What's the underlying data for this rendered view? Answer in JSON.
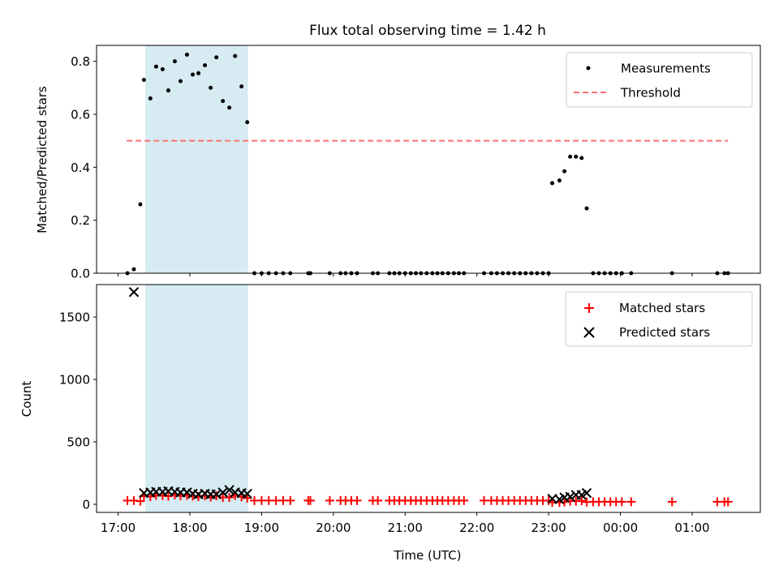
{
  "chart_data": [
    {
      "type": "scatter",
      "title": "Flux total observing time = 1.42 h",
      "ylabel": "Matched/Predicted stars",
      "xlim": [
        16.7,
        25.95
      ],
      "ylim": [
        0,
        0.86
      ],
      "yticks": [
        {
          "v": 0.0,
          "label": "0.0"
        },
        {
          "v": 0.2,
          "label": "0.2"
        },
        {
          "v": 0.4,
          "label": "0.4"
        },
        {
          "v": 0.6,
          "label": "0.6"
        },
        {
          "v": 0.8,
          "label": "0.8"
        }
      ],
      "shaded_span": {
        "x0": 17.38,
        "x1": 18.81,
        "color": "#add8e6"
      },
      "threshold": {
        "name": "Threshold",
        "y": 0.5,
        "x0": 17.12,
        "x1": 25.5,
        "color": "#ff7070"
      },
      "legend": {
        "position": "upper right"
      },
      "series": [
        {
          "name": "Measurements",
          "color": "#000000",
          "x": [
            17.13,
            17.22,
            17.31,
            17.36,
            17.45,
            17.53,
            17.62,
            17.7,
            17.79,
            17.87,
            17.96,
            18.04,
            18.12,
            18.21,
            18.29,
            18.37,
            18.46,
            18.55,
            18.63,
            18.72,
            18.8,
            18.9,
            19.0,
            19.1,
            19.2,
            19.3,
            19.4,
            19.65,
            19.68,
            19.95,
            20.1,
            20.17,
            20.25,
            20.33,
            20.55,
            20.62,
            20.78,
            20.85,
            20.92,
            21.0,
            21.08,
            21.15,
            21.22,
            21.3,
            21.38,
            21.45,
            21.52,
            21.6,
            21.68,
            21.75,
            21.82,
            22.1,
            22.2,
            22.28,
            22.36,
            22.44,
            22.52,
            22.6,
            22.68,
            22.76,
            22.84,
            22.92,
            23.0,
            23.05,
            23.15,
            23.22,
            23.3,
            23.38,
            23.46,
            23.53,
            23.62,
            23.7,
            23.78,
            23.86,
            23.94,
            24.02,
            24.15,
            24.72,
            25.35,
            25.45,
            25.5
          ],
          "y": [
            0.0,
            0.015,
            0.26,
            0.73,
            0.66,
            0.78,
            0.77,
            0.69,
            0.8,
            0.725,
            0.825,
            0.75,
            0.755,
            0.785,
            0.7,
            0.815,
            0.65,
            0.625,
            0.82,
            0.705,
            0.57,
            0,
            0,
            0,
            0,
            0,
            0,
            0,
            0,
            0,
            0,
            0,
            0,
            0,
            0,
            0,
            0,
            0,
            0,
            0,
            0,
            0,
            0,
            0,
            0,
            0,
            0,
            0,
            0,
            0,
            0,
            0,
            0,
            0,
            0,
            0,
            0,
            0,
            0,
            0,
            0,
            0,
            0,
            0.34,
            0.35,
            0.385,
            0.44,
            0.44,
            0.435,
            0.245,
            0,
            0,
            0,
            0,
            0,
            0,
            0,
            0,
            0,
            0,
            0
          ]
        }
      ]
    },
    {
      "type": "scatter",
      "ylabel": "Count",
      "xlabel": "Time (UTC)",
      "xlim": [
        16.7,
        25.95
      ],
      "ylim": [
        -65,
        1760
      ],
      "yticks": [
        {
          "v": 0,
          "label": "0"
        },
        {
          "v": 500,
          "label": "500"
        },
        {
          "v": 1000,
          "label": "1000"
        },
        {
          "v": 1500,
          "label": "1500"
        }
      ],
      "xticks": [
        {
          "v": 17,
          "label": "17:00"
        },
        {
          "v": 18,
          "label": "18:00"
        },
        {
          "v": 19,
          "label": "19:00"
        },
        {
          "v": 20,
          "label": "20:00"
        },
        {
          "v": 21,
          "label": "21:00"
        },
        {
          "v": 22,
          "label": "22:00"
        },
        {
          "v": 23,
          "label": "23:00"
        },
        {
          "v": 24,
          "label": "00:00"
        },
        {
          "v": 25,
          "label": "01:00"
        }
      ],
      "shaded_span": {
        "x0": 17.38,
        "x1": 18.81,
        "color": "#add8e6"
      },
      "legend": {
        "position": "upper right"
      },
      "series": [
        {
          "name": "Matched stars",
          "marker": "plus",
          "color": "#ff0000",
          "x": [
            17.13,
            17.22,
            17.31,
            17.36,
            17.45,
            17.53,
            17.62,
            17.7,
            17.79,
            17.87,
            17.96,
            18.04,
            18.12,
            18.21,
            18.29,
            18.37,
            18.46,
            18.55,
            18.63,
            18.72,
            18.8,
            18.9,
            19.0,
            19.1,
            19.2,
            19.3,
            19.4,
            19.65,
            19.68,
            19.95,
            20.1,
            20.17,
            20.25,
            20.33,
            20.55,
            20.62,
            20.78,
            20.85,
            20.92,
            21.0,
            21.08,
            21.15,
            21.22,
            21.3,
            21.38,
            21.45,
            21.52,
            21.6,
            21.68,
            21.75,
            21.82,
            22.1,
            22.2,
            22.28,
            22.36,
            22.44,
            22.52,
            22.6,
            22.68,
            22.76,
            22.84,
            22.92,
            23.0,
            23.05,
            23.15,
            23.22,
            23.3,
            23.38,
            23.46,
            23.53,
            23.62,
            23.7,
            23.78,
            23.86,
            23.94,
            24.02,
            24.15,
            24.72,
            25.35,
            25.45,
            25.5
          ],
          "y": [
            30,
            30,
            25,
            65,
            62,
            72,
            70,
            65,
            75,
            68,
            72,
            65,
            62,
            68,
            58,
            68,
            55,
            55,
            70,
            60,
            50,
            30,
            30,
            30,
            30,
            30,
            30,
            30,
            30,
            30,
            30,
            30,
            30,
            30,
            30,
            30,
            30,
            30,
            30,
            30,
            30,
            30,
            30,
            30,
            30,
            30,
            30,
            30,
            30,
            30,
            30,
            30,
            30,
            30,
            30,
            30,
            30,
            30,
            30,
            30,
            30,
            30,
            30,
            15,
            15,
            18,
            25,
            25,
            28,
            18,
            20,
            20,
            20,
            20,
            20,
            20,
            20,
            20,
            20,
            20,
            20
          ]
        },
        {
          "name": "Predicted stars",
          "marker": "x",
          "color": "#000000",
          "x": [
            17.22,
            17.36,
            17.45,
            17.53,
            17.62,
            17.7,
            17.79,
            17.87,
            17.96,
            18.04,
            18.12,
            18.21,
            18.29,
            18.37,
            18.46,
            18.55,
            18.63,
            18.72,
            18.8,
            23.05,
            23.15,
            23.22,
            23.3,
            23.38,
            23.46,
            23.53
          ],
          "y": [
            1700,
            90,
            95,
            100,
            100,
            105,
            100,
            95,
            95,
            85,
            80,
            85,
            80,
            80,
            95,
            115,
            95,
            90,
            85,
            45,
            40,
            55,
            60,
            75,
            75,
            90
          ]
        }
      ]
    }
  ]
}
